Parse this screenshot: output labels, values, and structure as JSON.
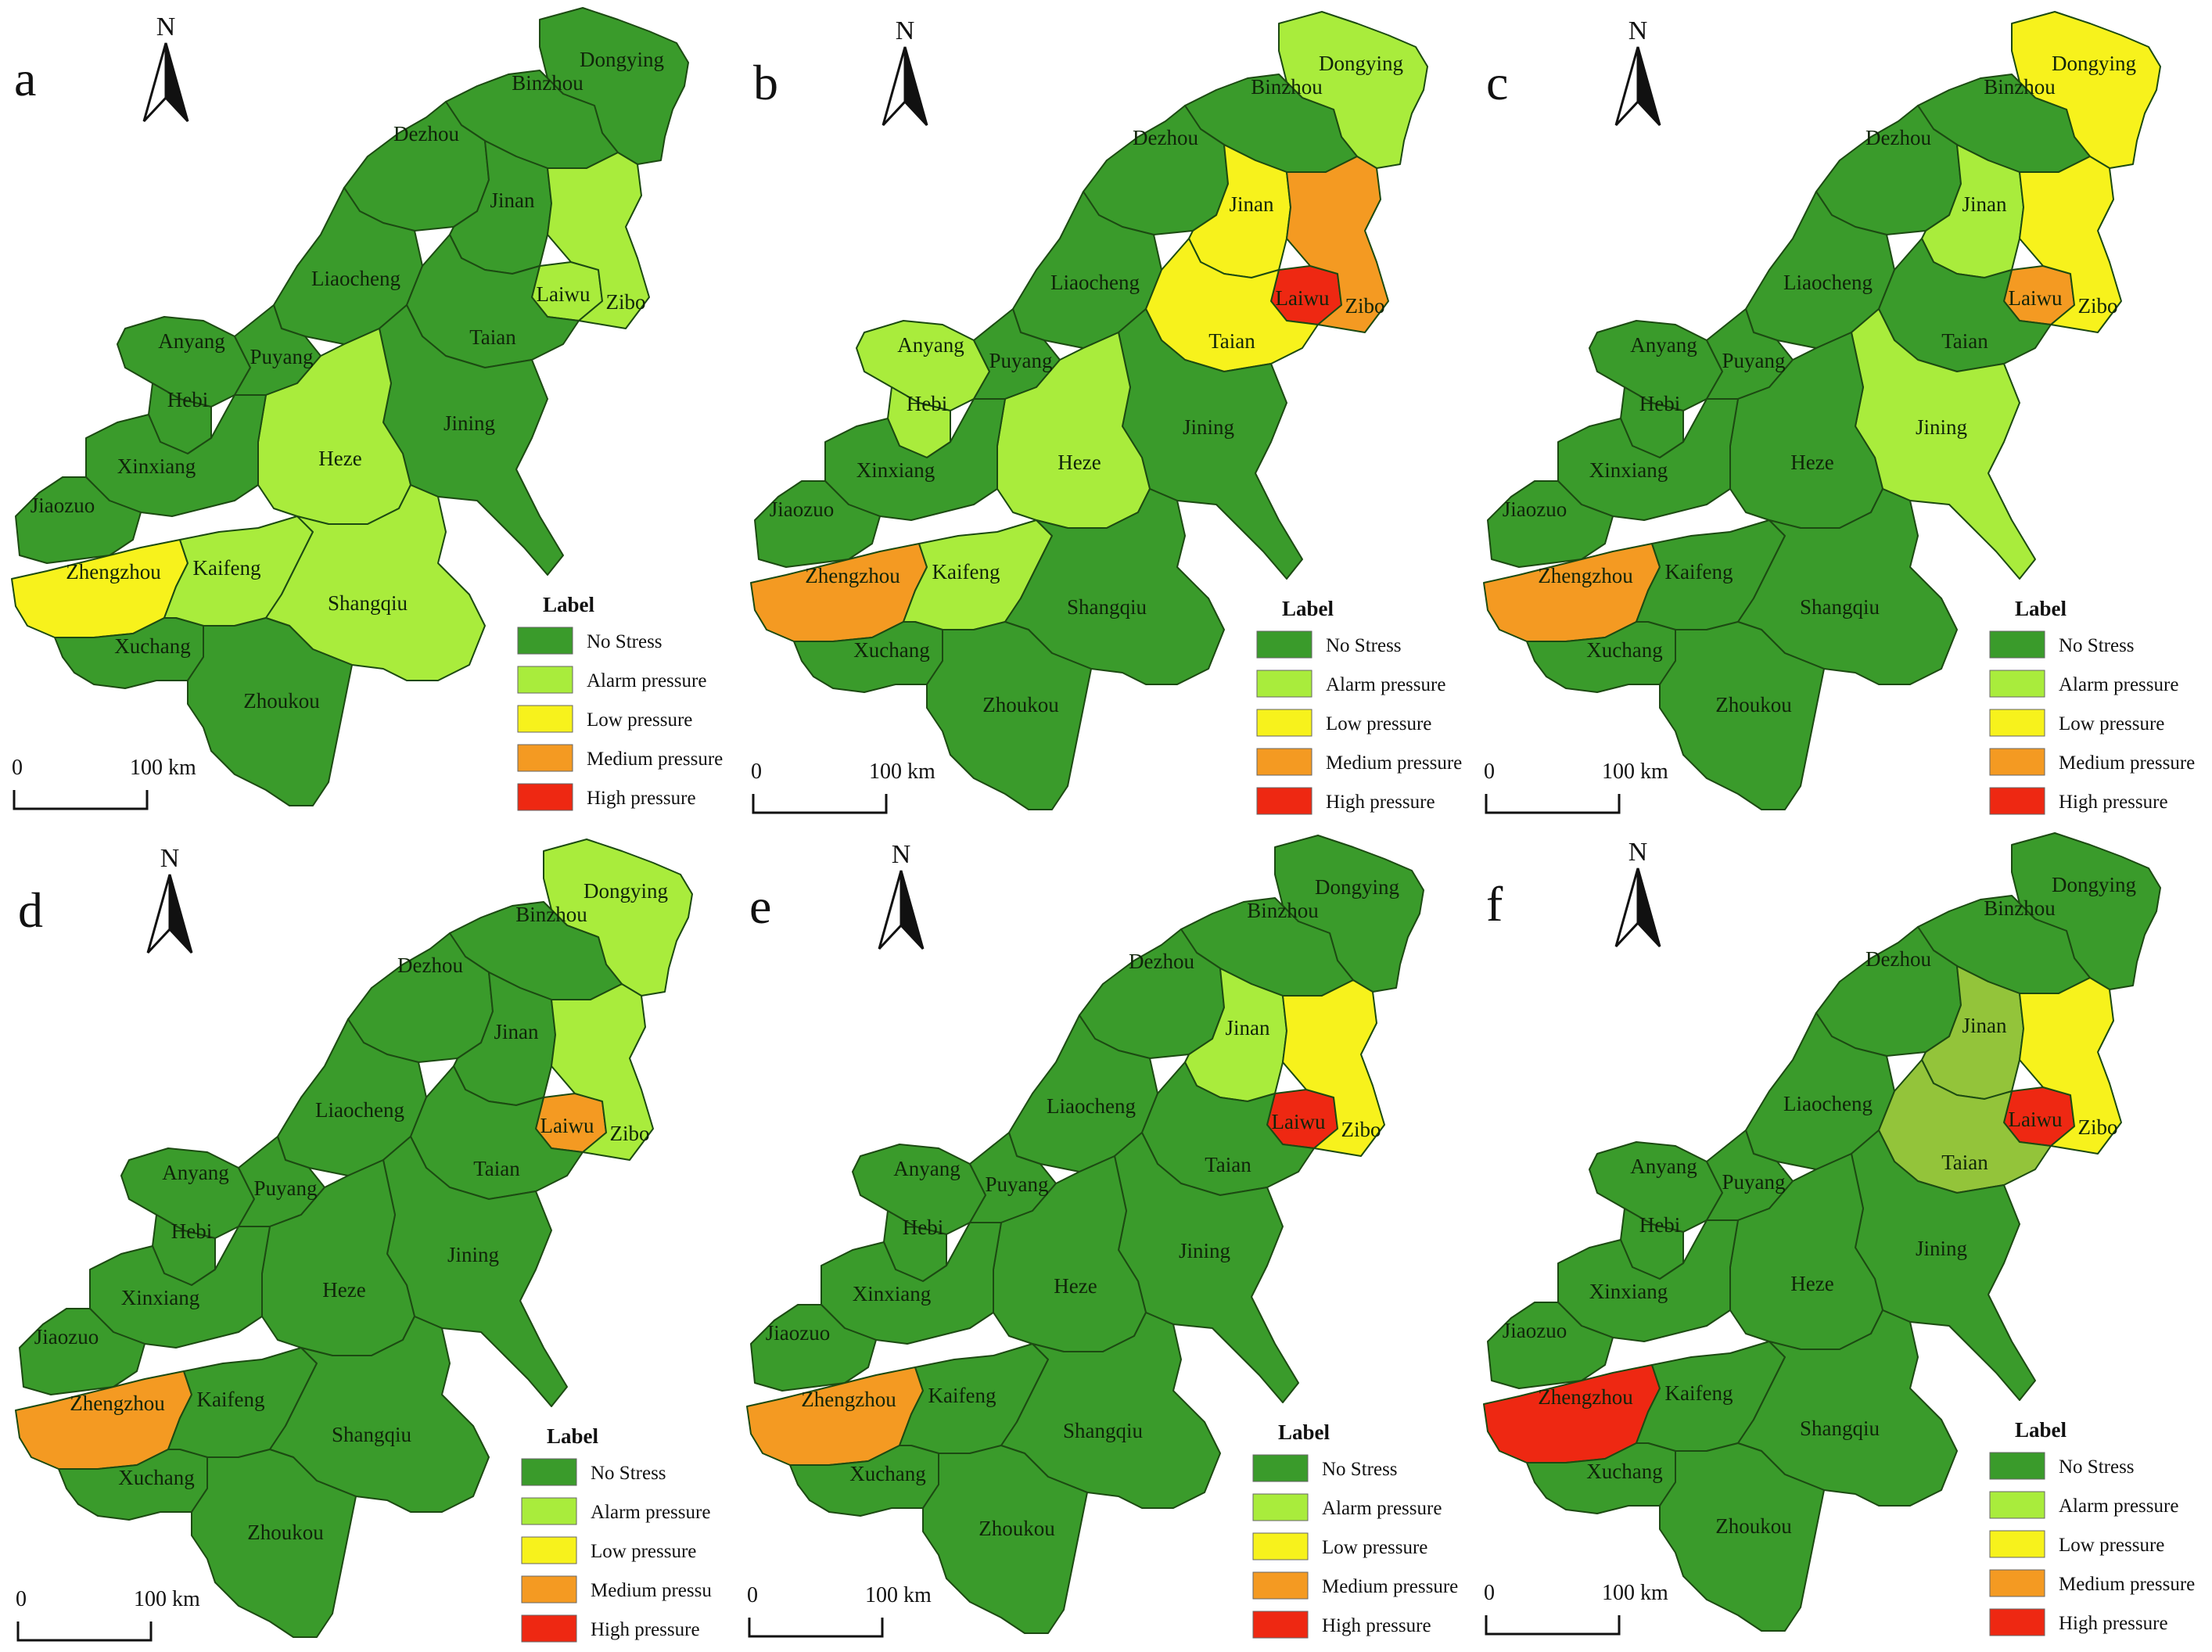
{
  "colors": {
    "no_stress": "#3a9b2b",
    "alarm_pressure": "#a9ec3c",
    "low_pressure": "#f7f21c",
    "medium_pressure": "#f49a22",
    "high_pressure": "#ee2812",
    "olive_variant": "#93c43a",
    "boundary": "#1c4a12",
    "outline": "#3c5a28"
  },
  "legend": {
    "title": "Label",
    "items": [
      {
        "key": "no_stress",
        "label": "No Stress"
      },
      {
        "key": "alarm_pressure",
        "label": "Alarm pressure"
      },
      {
        "key": "low_pressure",
        "label": "Low pressure"
      },
      {
        "key": "medium_pressure",
        "label": "Medium pressure"
      },
      {
        "key": "high_pressure",
        "label": "High pressure"
      }
    ]
  },
  "north_label": "N",
  "scale": {
    "start": "0",
    "end": "100 km"
  },
  "panels": [
    {
      "letter": "a",
      "legend_labels": [
        "No Stress",
        "Alarm pressure",
        "Low pressure",
        "Medium pressure",
        "High pressure"
      ],
      "regions": {
        "Dongying": "no_stress",
        "Binzhou": "no_stress",
        "Dezhou": "no_stress",
        "Jinan": "no_stress",
        "Laiwu": "alarm_pressure",
        "Zibo": "alarm_pressure",
        "Liaocheng": "no_stress",
        "Taian": "no_stress",
        "Anyang": "no_stress",
        "Puyang": "no_stress",
        "Hebi": "no_stress",
        "Jining": "no_stress",
        "Heze": "alarm_pressure",
        "Xinxiang": "no_stress",
        "Jiaozuo": "no_stress",
        "Zhengzhou": "low_pressure",
        "Kaifeng": "alarm_pressure",
        "Shangqiu": "alarm_pressure",
        "Xuchang": "no_stress",
        "Zhoukou": "no_stress"
      }
    },
    {
      "letter": "b",
      "legend_labels": [
        "No Stress",
        "Alarm pressure",
        "Low pressure",
        "Medium pressure",
        "High pressure"
      ],
      "regions": {
        "Dongying": "alarm_pressure",
        "Binzhou": "no_stress",
        "Dezhou": "no_stress",
        "Jinan": "low_pressure",
        "Laiwu": "high_pressure",
        "Zibo": "medium_pressure",
        "Liaocheng": "no_stress",
        "Taian": "low_pressure",
        "Anyang": "alarm_pressure",
        "Puyang": "no_stress",
        "Hebi": "alarm_pressure",
        "Jining": "no_stress",
        "Heze": "alarm_pressure",
        "Xinxiang": "no_stress",
        "Jiaozuo": "no_stress",
        "Zhengzhou": "medium_pressure",
        "Kaifeng": "alarm_pressure",
        "Shangqiu": "no_stress",
        "Xuchang": "no_stress",
        "Zhoukou": "no_stress"
      }
    },
    {
      "letter": "c",
      "legend_labels": [
        "No Stress",
        "Alarm pressure",
        "Low pressure",
        "Medium pressure",
        "High pressure"
      ],
      "regions": {
        "Dongying": "low_pressure",
        "Binzhou": "no_stress",
        "Dezhou": "no_stress",
        "Jinan": "alarm_pressure",
        "Laiwu": "medium_pressure",
        "Zibo": "low_pressure",
        "Liaocheng": "no_stress",
        "Taian": "no_stress",
        "Anyang": "no_stress",
        "Puyang": "no_stress",
        "Hebi": "no_stress",
        "Jining": "alarm_pressure",
        "Heze": "no_stress",
        "Xinxiang": "no_stress",
        "Jiaozuo": "no_stress",
        "Zhengzhou": "medium_pressure",
        "Kaifeng": "no_stress",
        "Shangqiu": "no_stress",
        "Xuchang": "no_stress",
        "Zhoukou": "no_stress"
      }
    },
    {
      "letter": "d",
      "legend_labels": [
        "No Stress",
        "Alarm pressure",
        "Low pressure",
        "Medium pressu",
        "High pressure"
      ],
      "regions": {
        "Dongying": "alarm_pressure",
        "Binzhou": "no_stress",
        "Dezhou": "no_stress",
        "Jinan": "no_stress",
        "Laiwu": "medium_pressure",
        "Zibo": "alarm_pressure",
        "Liaocheng": "no_stress",
        "Taian": "no_stress",
        "Anyang": "no_stress",
        "Puyang": "no_stress",
        "Hebi": "no_stress",
        "Jining": "no_stress",
        "Heze": "no_stress",
        "Xinxiang": "no_stress",
        "Jiaozuo": "no_stress",
        "Zhengzhou": "medium_pressure",
        "Kaifeng": "no_stress",
        "Shangqiu": "no_stress",
        "Xuchang": "no_stress",
        "Zhoukou": "no_stress"
      }
    },
    {
      "letter": "e",
      "legend_labels": [
        "No Stress",
        "Alarm pressure",
        "Low pressure",
        "Medium pressure",
        "High pressure"
      ],
      "regions": {
        "Dongying": "no_stress",
        "Binzhou": "no_stress",
        "Dezhou": "no_stress",
        "Jinan": "alarm_pressure",
        "Laiwu": "high_pressure",
        "Zibo": "low_pressure",
        "Liaocheng": "no_stress",
        "Taian": "no_stress",
        "Anyang": "no_stress",
        "Puyang": "no_stress",
        "Hebi": "no_stress",
        "Jining": "no_stress",
        "Heze": "no_stress",
        "Xinxiang": "no_stress",
        "Jiaozuo": "no_stress",
        "Zhengzhou": "medium_pressure",
        "Kaifeng": "no_stress",
        "Shangqiu": "no_stress",
        "Xuchang": "no_stress",
        "Zhoukou": "no_stress"
      }
    },
    {
      "letter": "f",
      "legend_labels": [
        "No Stress",
        "Alarm pressure",
        "Low pressure",
        "Medium pressure",
        "High pressure"
      ],
      "regions": {
        "Dongying": "no_stress",
        "Binzhou": "no_stress",
        "Dezhou": "no_stress",
        "Jinan": "olive_variant",
        "Laiwu": "high_pressure",
        "Zibo": "low_pressure",
        "Liaocheng": "no_stress",
        "Taian": "olive_variant",
        "Anyang": "no_stress",
        "Puyang": "no_stress",
        "Hebi": "no_stress",
        "Jining": "no_stress",
        "Heze": "no_stress",
        "Xinxiang": "no_stress",
        "Jiaozuo": "no_stress",
        "Zhengzhou": "high_pressure",
        "Kaifeng": "no_stress",
        "Shangqiu": "no_stress",
        "Xuchang": "no_stress",
        "Zhoukou": "no_stress"
      }
    }
  ]
}
